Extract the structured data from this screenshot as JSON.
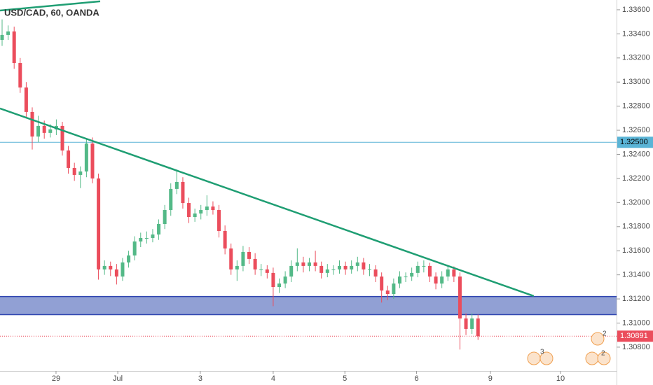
{
  "chart_data": {
    "type": "candlestick",
    "title": "USD/CAD, 60, OANDA",
    "xlim": [
      -0.35,
      102
    ],
    "xticks": [
      {
        "value": 8.95,
        "label": "29"
      },
      {
        "value": 19.2,
        "label": "Jul"
      },
      {
        "value": 32.9,
        "label": "3"
      },
      {
        "value": 45,
        "label": "4"
      },
      {
        "value": 56.9,
        "label": "5"
      },
      {
        "value": 68.8,
        "label": "6"
      },
      {
        "value": 81.05,
        "label": "9"
      },
      {
        "value": 92.7,
        "label": "10"
      }
    ],
    "ylim": [
      1.30602,
      1.33681
    ],
    "yticks": [
      {
        "value": 1.336,
        "label": "1.33600"
      },
      {
        "value": 1.334,
        "label": "1.33400"
      },
      {
        "value": 1.332,
        "label": "1.33200"
      },
      {
        "value": 1.33,
        "label": "1.33000"
      },
      {
        "value": 1.328,
        "label": "1.32800"
      },
      {
        "value": 1.326,
        "label": "1.32600"
      },
      {
        "value": 1.324,
        "label": "1.32400"
      },
      {
        "value": 1.322,
        "label": "1.32200"
      },
      {
        "value": 1.32,
        "label": "1.32000"
      },
      {
        "value": 1.318,
        "label": "1.31800"
      },
      {
        "value": 1.316,
        "label": "1.31600"
      },
      {
        "value": 1.314,
        "label": "1.31400"
      },
      {
        "value": 1.312,
        "label": "1.31200"
      },
      {
        "value": 1.31,
        "label": "1.31000"
      },
      {
        "value": 1.308,
        "label": "1.30800"
      }
    ],
    "up_color": "#53b987",
    "down_color": "#eb4d5c",
    "open": [
      1.3335,
      1.33391,
      1.3342,
      1.33158,
      1.32955,
      1.32752,
      1.32548,
      1.32636,
      1.32578,
      1.32607,
      1.32636,
      1.32432,
      1.32287,
      1.32229,
      1.32258,
      1.3249,
      1.322,
      1.31445,
      1.31474,
      1.31445,
      1.31386,
      1.31503,
      1.31561,
      1.31677,
      1.31706,
      1.31706,
      1.31735,
      1.31822,
      1.31938,
      1.32113,
      1.32171,
      1.31996,
      1.3188,
      1.31909,
      1.31938,
      1.31967,
      1.31938,
      1.31764,
      1.31619,
      1.31445,
      1.31474,
      1.3159,
      1.31532,
      1.31445,
      1.31445,
      1.31416,
      1.31299,
      1.31328,
      1.31386,
      1.31474,
      1.31503,
      1.31474,
      1.31503,
      1.31474,
      1.31416,
      1.31445,
      1.31445,
      1.31474,
      1.31445,
      1.31474,
      1.31503,
      1.31445,
      1.31445,
      1.31386,
      1.3127,
      1.31241,
      1.31328,
      1.31386,
      1.31386,
      1.31416,
      1.31474,
      1.31474,
      1.31386,
      1.31328,
      1.31386,
      1.31445,
      1.31386,
      1.31038,
      1.30951,
      1.31038
    ],
    "high": [
      1.3352,
      1.3347,
      1.3346,
      1.332,
      1.33,
      1.3279,
      1.3272,
      1.3268,
      1.3265,
      1.3269,
      1.3267,
      1.3247,
      1.3233,
      1.323,
      1.3253,
      1.3254,
      1.3224,
      1.3152,
      1.3151,
      1.3149,
      1.3154,
      1.316,
      1.3172,
      1.3175,
      1.3176,
      1.3178,
      1.3186,
      1.3198,
      1.3216,
      1.3226,
      1.3221,
      1.3204,
      1.3195,
      1.3198,
      1.3206,
      1.3201,
      1.3198,
      1.3181,
      1.3166,
      1.3152,
      1.3164,
      1.3163,
      1.3158,
      1.3149,
      1.3148,
      1.3146,
      1.3137,
      1.3143,
      1.3152,
      1.3162,
      1.3155,
      1.3154,
      1.316,
      1.3151,
      1.3149,
      1.3148,
      1.3152,
      1.3151,
      1.3152,
      1.3155,
      1.3154,
      1.3149,
      1.3148,
      1.3142,
      1.3131,
      1.3137,
      1.3143,
      1.3142,
      1.3146,
      1.3151,
      1.3152,
      1.315,
      1.3142,
      1.3143,
      1.3148,
      1.3147,
      1.3142,
      1.3108,
      1.3108,
      1.3107
    ],
    "low": [
      1.333,
      1.3335,
      1.3311,
      1.3291,
      1.327,
      1.3244,
      1.325,
      1.3253,
      1.3254,
      1.3256,
      1.3239,
      1.3224,
      1.3218,
      1.3212,
      1.3221,
      1.3216,
      1.3136,
      1.314,
      1.3139,
      1.3132,
      1.3135,
      1.3146,
      1.3152,
      1.3163,
      1.3166,
      1.3167,
      1.3169,
      1.3178,
      1.3189,
      1.3207,
      1.3195,
      1.3183,
      1.3184,
      1.3186,
      1.3189,
      1.319,
      1.3171,
      1.3157,
      1.314,
      1.3135,
      1.3143,
      1.3149,
      1.314,
      1.3139,
      1.3137,
      1.3114,
      1.3125,
      1.3129,
      1.3134,
      1.3143,
      1.3142,
      1.3143,
      1.3143,
      1.3137,
      1.3138,
      1.314,
      1.3141,
      1.314,
      1.3141,
      1.3143,
      1.314,
      1.3139,
      1.3134,
      1.3117,
      1.3119,
      1.312,
      1.3129,
      1.3134,
      1.3135,
      1.3138,
      1.3142,
      1.3134,
      1.3128,
      1.3129,
      1.3135,
      1.3134,
      1.3078,
      1.309,
      1.3091,
      1.3086
    ],
    "close": [
      1.33391,
      1.3342,
      1.33158,
      1.32955,
      1.32752,
      1.32548,
      1.32636,
      1.32578,
      1.32607,
      1.32636,
      1.32432,
      1.32287,
      1.32229,
      1.32258,
      1.3249,
      1.322,
      1.31445,
      1.31474,
      1.31445,
      1.31386,
      1.31503,
      1.31561,
      1.31677,
      1.31706,
      1.31706,
      1.31735,
      1.31822,
      1.31938,
      1.32113,
      1.32171,
      1.31996,
      1.3188,
      1.31909,
      1.31938,
      1.31967,
      1.31938,
      1.31764,
      1.31619,
      1.31445,
      1.31474,
      1.3159,
      1.31532,
      1.31445,
      1.31445,
      1.31416,
      1.31299,
      1.31328,
      1.31386,
      1.31474,
      1.31503,
      1.31474,
      1.31503,
      1.31474,
      1.31416,
      1.31445,
      1.31445,
      1.31474,
      1.31445,
      1.31474,
      1.31503,
      1.31445,
      1.31445,
      1.31386,
      1.3127,
      1.31241,
      1.31328,
      1.31386,
      1.31386,
      1.31416,
      1.31474,
      1.31474,
      1.31386,
      1.31328,
      1.31386,
      1.31445,
      1.31386,
      1.31038,
      1.30951,
      1.31038,
      1.30891
    ],
    "hline": {
      "value": 1.325,
      "label": "1.32500",
      "color": "#5ab4d6"
    },
    "last_price": {
      "value": 1.30891,
      "label": "1.30891",
      "color": "#eb4d5c"
    },
    "zone": {
      "from": 1.3107,
      "to": 1.3122,
      "color": "#7e8fcc",
      "border": "#2e44b0"
    },
    "trendlines": [
      {
        "x": [
          -0.35,
          88.26
        ],
        "y": [
          1.32781,
          1.31224
        ],
        "color": "#1f9e73"
      },
      {
        "x": [
          -0.35,
          16.28
        ],
        "y": [
          1.33594,
          1.3367
        ],
        "color": "#1f9e73"
      }
    ],
    "event_badges": [
      "3",
      "2",
      "2"
    ]
  }
}
